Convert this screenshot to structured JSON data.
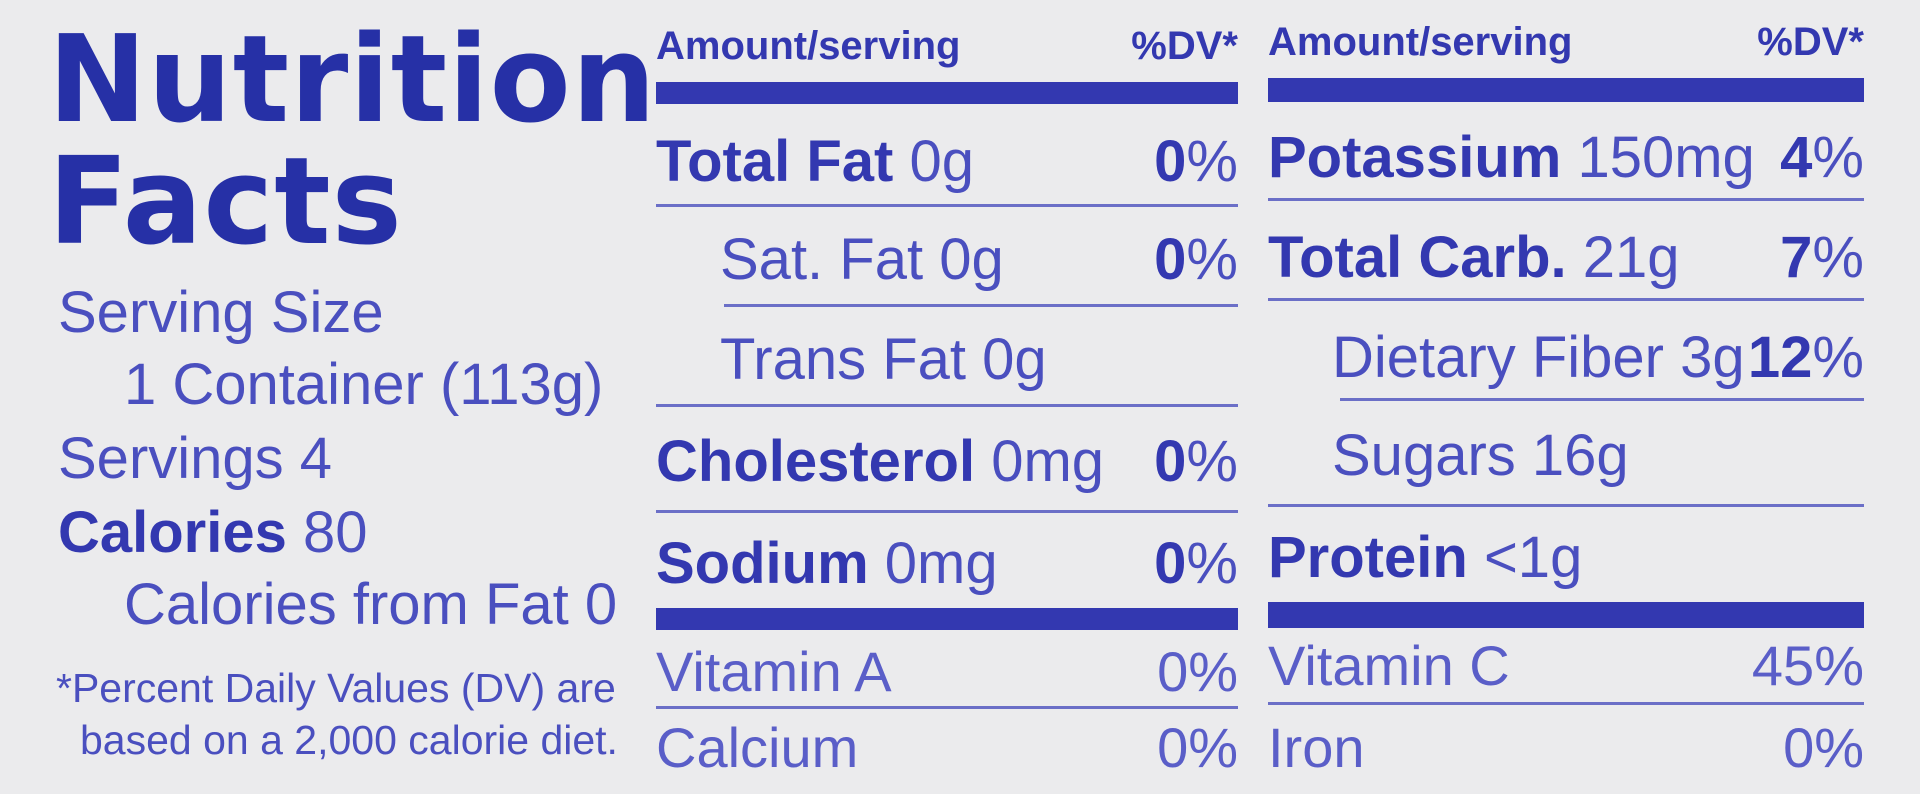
{
  "title_line1": "Nutrition",
  "title_line2": "Facts",
  "serving_size_label": "Serving Size",
  "serving_size_value": "1 Container (113g)",
  "servings_label": "Servings",
  "servings_value": "4",
  "calories_label": "Calories",
  "calories_value": "80",
  "calories_from_fat": "Calories from Fat 0",
  "footnote_line1": "*Percent Daily Values (DV) are",
  "footnote_line2": "based on a 2,000 calorie diet.",
  "left_table": {
    "header_amount": "Amount/serving",
    "header_dv": "%DV*",
    "rows": [
      {
        "name": "Total Fat",
        "amount": "0g",
        "dv_num": "0",
        "dv_sign": "%"
      },
      {
        "name": "Sat. Fat 0g",
        "amount": "",
        "dv_num": "0",
        "dv_sign": "%"
      },
      {
        "name": "Trans Fat 0g",
        "amount": "",
        "dv_num": "",
        "dv_sign": ""
      },
      {
        "name": "Cholesterol",
        "amount": "0mg",
        "dv_num": "0",
        "dv_sign": "%"
      },
      {
        "name": "Sodium",
        "amount": "0mg",
        "dv_num": "0",
        "dv_sign": "%"
      }
    ],
    "vitamins": [
      {
        "name": "Vitamin A",
        "dv": "0%"
      },
      {
        "name": "Calcium",
        "dv": "0%"
      }
    ]
  },
  "right_table": {
    "header_amount": "Amount/serving",
    "header_dv": "%DV*",
    "rows": [
      {
        "name": "Potassium",
        "amount": "150mg",
        "dv_num": "4",
        "dv_sign": "%"
      },
      {
        "name": "Total Carb.",
        "amount": "21g",
        "dv_num": "7",
        "dv_sign": "%"
      },
      {
        "name": "Dietary Fiber 3g",
        "amount": "",
        "dv_num": "12",
        "dv_sign": "%"
      },
      {
        "name": "Sugars 16g",
        "amount": "",
        "dv_num": "",
        "dv_sign": ""
      },
      {
        "name": "Protein",
        "amount": "<1g",
        "dv_num": "",
        "dv_sign": ""
      }
    ],
    "vitamins": [
      {
        "name": "Vitamin C",
        "dv": "45%"
      },
      {
        "name": "Iron",
        "dv": "0%"
      }
    ]
  },
  "colors": {
    "background": "#ebebed",
    "ink_dark": "#2630a6",
    "ink": "#3338b0",
    "ink_light": "#4a4fbf"
  }
}
